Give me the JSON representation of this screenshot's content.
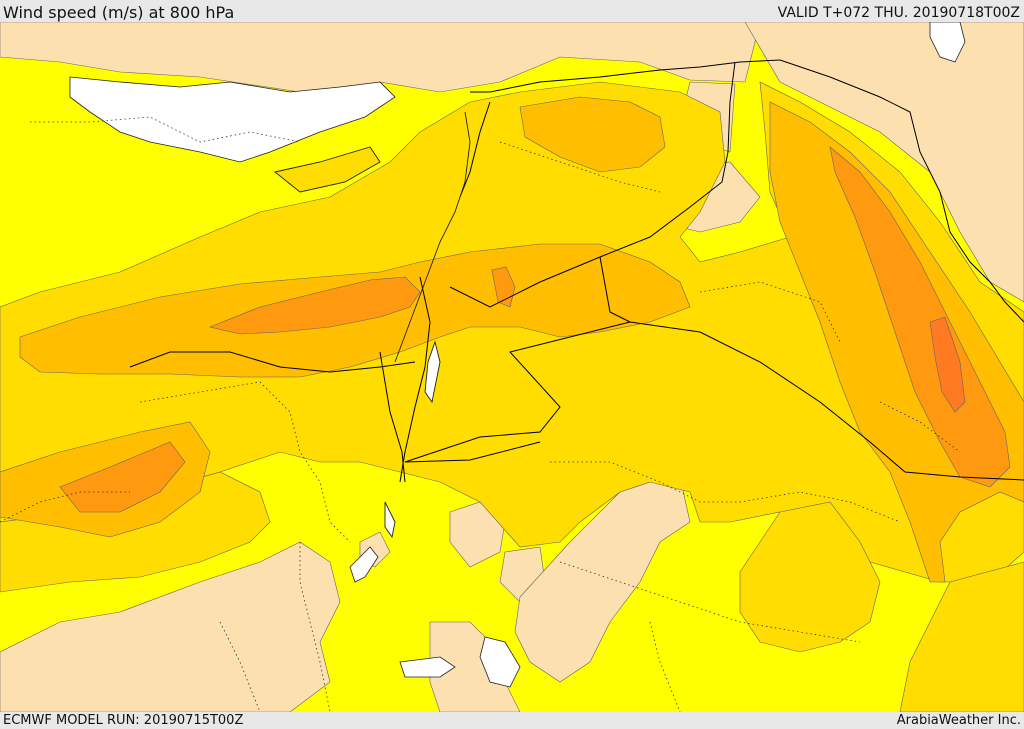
{
  "header": {
    "title": "Wind speed (m/s) at 800 hPa",
    "valid": "VALID T+072 THU. 20190718T00Z"
  },
  "footer": {
    "model_run": "ECMWF MODEL RUN: 20190715T00Z",
    "credit": "ArabiaWeather Inc."
  },
  "palette": {
    "sea": "#ffffff",
    "calm": "#fde0b0",
    "level1": "#ffff00",
    "level2": "#ffdd00",
    "level3": "#ffbe00",
    "level4": "#ff9a10",
    "level5": "#ff7a20",
    "border": "#000000"
  }
}
